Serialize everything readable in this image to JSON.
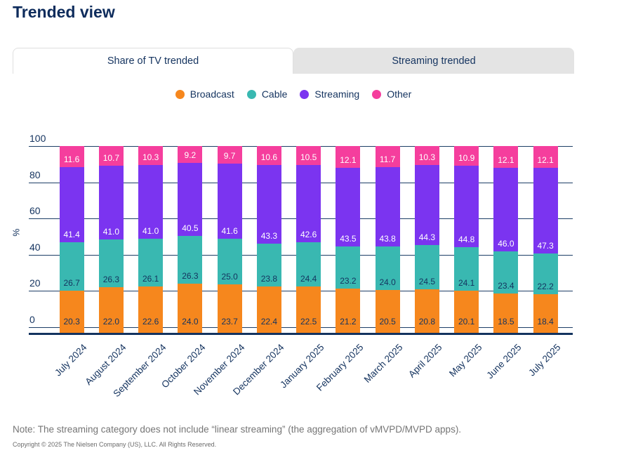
{
  "page": {
    "title": "Trended view"
  },
  "tabs": [
    {
      "label": "Share of TV trended",
      "active": true
    },
    {
      "label": "Streaming trended",
      "active": false
    }
  ],
  "chart_data": {
    "type": "bar",
    "subtype": "stacked-percentage",
    "categories": [
      "July 2024",
      "August 2024",
      "September 2024",
      "October 2024",
      "November 2024",
      "December 2024",
      "January 2025",
      "February 2025",
      "March 2025",
      "April 2025",
      "May 2025",
      "June 2025",
      "July 2025"
    ],
    "series": [
      {
        "name": "Broadcast",
        "color": "#F6871D",
        "label_color": "#14335F",
        "values": [
          20.3,
          22.0,
          22.6,
          24.0,
          23.7,
          22.4,
          22.5,
          21.2,
          20.5,
          20.8,
          20.1,
          18.5,
          18.4
        ]
      },
      {
        "name": "Cable",
        "color": "#39B8B1",
        "label_color": "#14335F",
        "values": [
          26.7,
          26.3,
          26.1,
          26.3,
          25.0,
          23.8,
          24.4,
          23.2,
          24.0,
          24.5,
          24.1,
          23.4,
          22.2
        ]
      },
      {
        "name": "Streaming",
        "color": "#7B34F0",
        "label_color": "#FFFFFF",
        "values": [
          41.4,
          41.0,
          41.0,
          40.5,
          41.6,
          43.3,
          42.6,
          43.5,
          43.8,
          44.3,
          44.8,
          46.0,
          47.3
        ]
      },
      {
        "name": "Other",
        "color": "#F53E9D",
        "label_color": "#FFFFFF",
        "values": [
          11.6,
          10.7,
          10.3,
          9.2,
          9.7,
          10.6,
          10.5,
          12.1,
          11.7,
          10.3,
          10.9,
          12.1,
          12.1
        ]
      }
    ],
    "ylabel": "%",
    "yticks": [
      0,
      20,
      40,
      60,
      80,
      100
    ],
    "ylim": [
      0,
      100
    ],
    "grid": true,
    "legend_position": "top",
    "value_labels": "one-decimal"
  },
  "note": "Note: The streaming category does not include “linear streaming” (the aggregation of vMVPD/MVPD apps).",
  "copyright": "Copyright © 2025 The Nielsen Company (US), LLC. All Rights Reserved."
}
